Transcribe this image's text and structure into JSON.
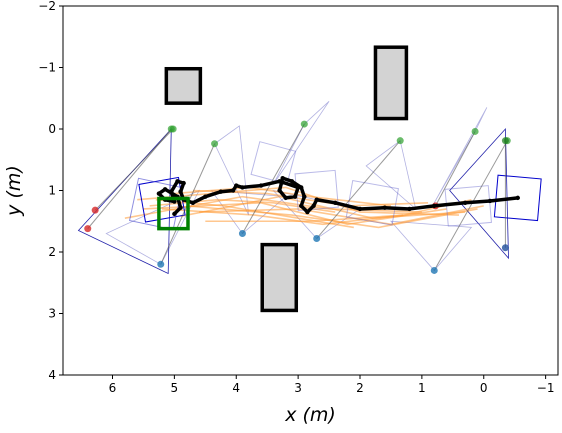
{
  "chart_data": {
    "type": "scatter",
    "title": "",
    "xlabel": "x (m)",
    "ylabel": "y (m)",
    "xlim": [
      6.8,
      -1.2
    ],
    "ylim": [
      4,
      -2
    ],
    "x_inverted": true,
    "y_inverted": true,
    "x_ticks": [
      6,
      5,
      4,
      3,
      2,
      1,
      0,
      -1
    ],
    "x_tick_labels": [
      "6",
      "5",
      "4",
      "3",
      "2",
      "1",
      "0",
      "−1"
    ],
    "y_ticks": [
      -2,
      -1,
      0,
      1,
      2,
      3,
      4
    ],
    "y_tick_labels": [
      "−2",
      "−1",
      "0",
      "1",
      "2",
      "3",
      "4"
    ],
    "grid": false,
    "obstacles": [
      {
        "x0": 4.58,
        "y0": -0.98,
        "x1": 5.13,
        "y1": -0.42
      },
      {
        "x0": 1.25,
        "y0": -1.33,
        "x1": 1.75,
        "y1": -0.17
      },
      {
        "x0": 3.03,
        "y0": 1.88,
        "x1": 3.58,
        "y1": 2.95
      }
    ],
    "goal": {
      "x0": 4.78,
      "y0": 1.13,
      "x1": 5.25,
      "y1": 1.62,
      "color": "#008000"
    },
    "robot_path": {
      "color": "#000000",
      "points": [
        [
          -0.55,
          1.12
        ],
        [
          -0.1,
          1.17
        ],
        [
          0.3,
          1.2
        ],
        [
          0.8,
          1.25
        ],
        [
          1.2,
          1.3
        ],
        [
          1.6,
          1.28
        ],
        [
          2.0,
          1.3
        ],
        [
          2.4,
          1.2
        ],
        [
          2.7,
          1.15
        ],
        [
          2.75,
          1.25
        ],
        [
          2.85,
          1.35
        ],
        [
          2.95,
          1.25
        ],
        [
          2.9,
          1.1
        ],
        [
          2.95,
          0.95
        ],
        [
          3.1,
          0.85
        ],
        [
          3.25,
          0.8
        ],
        [
          3.3,
          1.0
        ],
        [
          3.2,
          1.12
        ],
        [
          3.05,
          1.1
        ],
        [
          3.0,
          0.95
        ],
        [
          3.3,
          0.85
        ],
        [
          3.6,
          0.92
        ],
        [
          3.9,
          0.95
        ],
        [
          4.0,
          0.92
        ],
        [
          4.05,
          1.0
        ],
        [
          4.25,
          1.02
        ],
        [
          4.5,
          1.1
        ],
        [
          4.7,
          1.2
        ],
        [
          4.85,
          1.15
        ],
        [
          4.9,
          1.02
        ],
        [
          4.85,
          0.88
        ],
        [
          4.95,
          0.85
        ],
        [
          5.05,
          1.02
        ],
        [
          5.0,
          1.18
        ],
        [
          5.15,
          1.15
        ],
        [
          5.25,
          1.05
        ],
        [
          5.15,
          0.98
        ],
        [
          4.95,
          1.1
        ],
        [
          4.9,
          1.28
        ],
        [
          5.0,
          1.38
        ]
      ]
    },
    "orange_trajectories": {
      "color": "#ff9933",
      "paths": [
        [
          [
            0.0,
            1.25
          ],
          [
            1.5,
            1.55
          ],
          [
            3.0,
            1.3
          ],
          [
            4.6,
            1.35
          ]
        ],
        [
          [
            0.3,
            1.35
          ],
          [
            1.8,
            1.45
          ],
          [
            3.3,
            1.1
          ],
          [
            4.9,
            1.42
          ]
        ],
        [
          [
            0.6,
            1.3
          ],
          [
            2.2,
            1.55
          ],
          [
            3.6,
            1.2
          ],
          [
            5.5,
            1.3
          ]
        ],
        [
          [
            0.4,
            1.4
          ],
          [
            2.0,
            1.35
          ],
          [
            3.2,
            0.95
          ],
          [
            5.6,
            1.15
          ]
        ],
        [
          [
            1.0,
            1.35
          ],
          [
            2.5,
            1.3
          ],
          [
            3.9,
            1.1
          ],
          [
            5.8,
            1.45
          ]
        ],
        [
          [
            0.2,
            1.15
          ],
          [
            1.3,
            1.4
          ],
          [
            2.8,
            1.5
          ],
          [
            4.5,
            1.5
          ]
        ],
        [
          [
            1.3,
            1.4
          ],
          [
            2.6,
            1.55
          ],
          [
            3.7,
            1.4
          ],
          [
            5.2,
            1.3
          ]
        ],
        [
          [
            2.1,
            1.6
          ],
          [
            3.0,
            1.45
          ],
          [
            4.2,
            1.25
          ],
          [
            5.3,
            1.15
          ]
        ],
        [
          [
            0.9,
            1.2
          ],
          [
            2.2,
            1.25
          ],
          [
            3.5,
            1.05
          ],
          [
            4.7,
            1.0
          ]
        ],
        [
          [
            1.5,
            1.25
          ],
          [
            2.8,
            1.1
          ],
          [
            3.8,
            0.95
          ],
          [
            5.0,
            1.05
          ]
        ],
        [
          [
            2.4,
            1.35
          ],
          [
            3.4,
            1.2
          ],
          [
            4.3,
            1.15
          ],
          [
            5.4,
            1.25
          ]
        ],
        [
          [
            0.1,
            1.3
          ],
          [
            1.7,
            1.6
          ],
          [
            3.1,
            1.4
          ],
          [
            4.8,
            1.25
          ]
        ]
      ]
    },
    "agents": [
      {
        "start": [
          6.28,
          1.32
        ],
        "end": [
          5.02,
          0.0
        ],
        "start_color": "#d62728",
        "end_color": "#2ca02c"
      },
      {
        "start": [
          0.78,
          1.25
        ],
        "end": [
          0.14,
          0.04
        ],
        "start_color": "#d62728",
        "end_color": "#2ca02c"
      },
      {
        "start": [
          5.22,
          2.2
        ],
        "end": [
          4.35,
          0.24
        ],
        "start_color": "#1f77b4",
        "end_color": "#2ca02c"
      },
      {
        "start": [
          3.9,
          1.7
        ],
        "end": [
          2.9,
          -0.08
        ],
        "start_color": "#1f77b4",
        "end_color": "#2ca02c"
      },
      {
        "start": [
          2.7,
          1.78
        ],
        "end": [
          1.35,
          0.19
        ],
        "start_color": "#1f77b4",
        "end_color": "#2ca02c"
      },
      {
        "start": [
          0.8,
          2.3
        ],
        "end": [
          -0.38,
          0.19
        ],
        "start_color": "#1f77b4",
        "end_color": "#2ca02c"
      },
      {
        "start": [
          -0.35,
          1.93
        ],
        "end": [
          -0.35,
          0.19
        ],
        "start_color": "#1f4e9c",
        "end_color": "#1a7a1a"
      },
      {
        "start": [
          6.4,
          1.62
        ],
        "end": [
          5.05,
          0.0
        ],
        "start_color": "#d62728",
        "end_color": "#2ca02c"
      }
    ],
    "fov_boxes": [
      {
        "cx": 5.2,
        "cy": 1.15,
        "w": 0.65,
        "h": 0.62,
        "angle": -10,
        "opacity": 1.0,
        "color": "#0000cc"
      },
      {
        "cx": -0.55,
        "cy": 1.12,
        "w": 0.7,
        "h": 0.68,
        "angle": 5,
        "opacity": 1.0,
        "color": "#0000cc"
      },
      {
        "cx": 5.3,
        "cy": 1.22,
        "w": 0.72,
        "h": 0.7,
        "angle": 12,
        "opacity": 0.6,
        "color": "#4444cc"
      },
      {
        "cx": 3.4,
        "cy": 0.55,
        "w": 0.6,
        "h": 0.55,
        "angle": 15,
        "opacity": 0.45,
        "color": "#6666cc"
      },
      {
        "cx": 2.7,
        "cy": 1.0,
        "w": 0.65,
        "h": 0.6,
        "angle": -5,
        "opacity": 0.45,
        "color": "#6666cc"
      },
      {
        "cx": 1.8,
        "cy": 1.2,
        "w": 0.75,
        "h": 0.6,
        "angle": 10,
        "opacity": 0.45,
        "color": "#6666cc"
      },
      {
        "cx": 0.25,
        "cy": 1.25,
        "w": 0.7,
        "h": 0.6,
        "angle": -5,
        "opacity": 0.45,
        "color": "#6666cc"
      }
    ],
    "fov_triangles": [
      {
        "apex": [
          5.05,
          0.0
        ],
        "p2": [
          6.55,
          1.65
        ],
        "p3": [
          5.1,
          2.35
        ],
        "opacity": 1.0
      },
      {
        "apex": [
          -0.35,
          0.0
        ],
        "p2": [
          0.55,
          1.0
        ],
        "p3": [
          -0.4,
          2.1
        ],
        "opacity": 1.0
      },
      {
        "apex": [
          4.35,
          0.24
        ],
        "p2": [
          3.95,
          -0.05
        ],
        "p3": [
          3.8,
          1.4
        ],
        "opacity": 0.35
      },
      {
        "apex": [
          2.9,
          -0.08
        ],
        "p2": [
          2.5,
          -0.45
        ],
        "p3": [
          3.4,
          0.9
        ],
        "opacity": 0.35
      },
      {
        "apex": [
          1.35,
          0.19
        ],
        "p2": [
          1.9,
          0.6
        ],
        "p3": [
          1.1,
          1.3
        ],
        "opacity": 0.35
      },
      {
        "apex": [
          0.14,
          0.04
        ],
        "p2": [
          -0.05,
          -0.35
        ],
        "p3": [
          0.8,
          1.2
        ],
        "opacity": 0.35
      },
      {
        "apex": [
          5.22,
          2.2
        ],
        "p2": [
          6.1,
          1.7
        ],
        "p3": [
          4.6,
          1.0
        ],
        "opacity": 0.35
      },
      {
        "apex": [
          2.7,
          1.78
        ],
        "p2": [
          3.4,
          1.0
        ],
        "p3": [
          2.0,
          1.3
        ],
        "opacity": 0.35
      },
      {
        "apex": [
          0.8,
          2.3
        ],
        "p2": [
          1.5,
          1.5
        ],
        "p3": [
          0.2,
          1.6
        ],
        "opacity": 0.35
      },
      {
        "apex": [
          3.9,
          1.7
        ],
        "p2": [
          4.4,
          1.0
        ],
        "p3": [
          3.2,
          1.1
        ],
        "opacity": 0.35
      }
    ]
  }
}
